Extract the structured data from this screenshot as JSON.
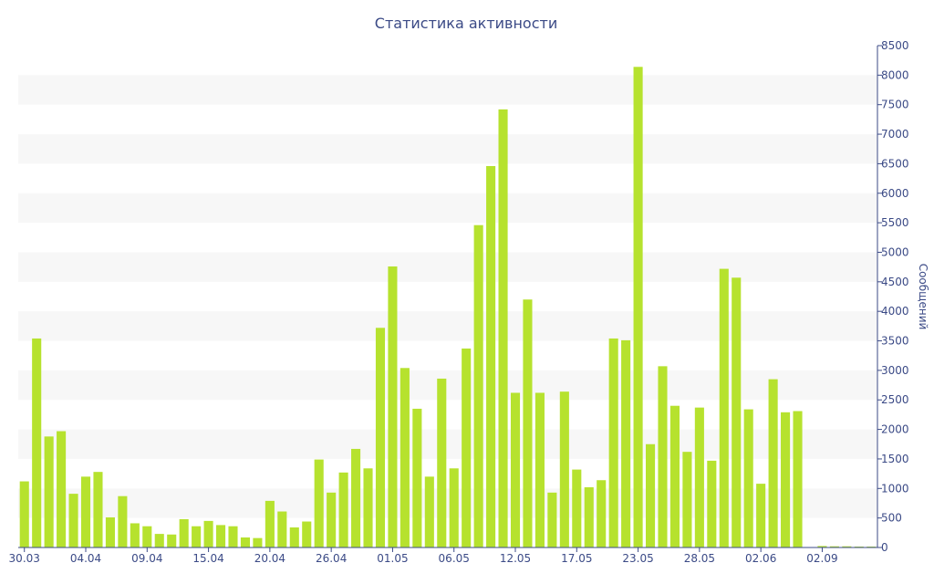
{
  "chart_data": {
    "type": "bar",
    "title": "Статистика активности",
    "xlabel": "",
    "ylabel": "Сообщений",
    "ylim": [
      0,
      8500
    ],
    "yticks": [
      0,
      500,
      1000,
      1500,
      2000,
      2500,
      3000,
      3500,
      4000,
      4500,
      5000,
      5500,
      6000,
      6500,
      7000,
      7500,
      8000,
      8500
    ],
    "grid": "alternating horizontal bands",
    "y_axis_side": "right",
    "bar_color": "#b6e22e",
    "band_color": "#f7f7f7",
    "text_color": "#3b4a86",
    "axis_color": "#3b4a86",
    "x_tick_labels": [
      {
        "index": 0,
        "label": "30.03"
      },
      {
        "index": 5,
        "label": "04.04"
      },
      {
        "index": 10,
        "label": "09.04"
      },
      {
        "index": 15,
        "label": "15.04"
      },
      {
        "index": 20,
        "label": "20.04"
      },
      {
        "index": 25,
        "label": "26.04"
      },
      {
        "index": 30,
        "label": "01.05"
      },
      {
        "index": 35,
        "label": "06.05"
      },
      {
        "index": 40,
        "label": "12.05"
      },
      {
        "index": 45,
        "label": "17.05"
      },
      {
        "index": 50,
        "label": "23.05"
      },
      {
        "index": 55,
        "label": "28.05"
      },
      {
        "index": 60,
        "label": "02.06"
      },
      {
        "index": 65,
        "label": "02.09"
      }
    ],
    "values": [
      1120,
      3540,
      1880,
      1970,
      910,
      1200,
      1280,
      510,
      870,
      410,
      360,
      230,
      220,
      480,
      360,
      450,
      380,
      360,
      170,
      160,
      790,
      610,
      340,
      440,
      1490,
      930,
      1270,
      1670,
      1340,
      3720,
      4760,
      3040,
      2350,
      1200,
      2860,
      1340,
      3370,
      5460,
      6460,
      7420,
      2620,
      4200,
      2620,
      930,
      2640,
      1320,
      1020,
      1140,
      3540,
      3510,
      8140,
      1750,
      3070,
      2400,
      1620,
      2370,
      1470,
      4720,
      4570,
      2340,
      1080,
      2850,
      2290,
      2310,
      0,
      25,
      20,
      20,
      15,
      15
    ]
  }
}
